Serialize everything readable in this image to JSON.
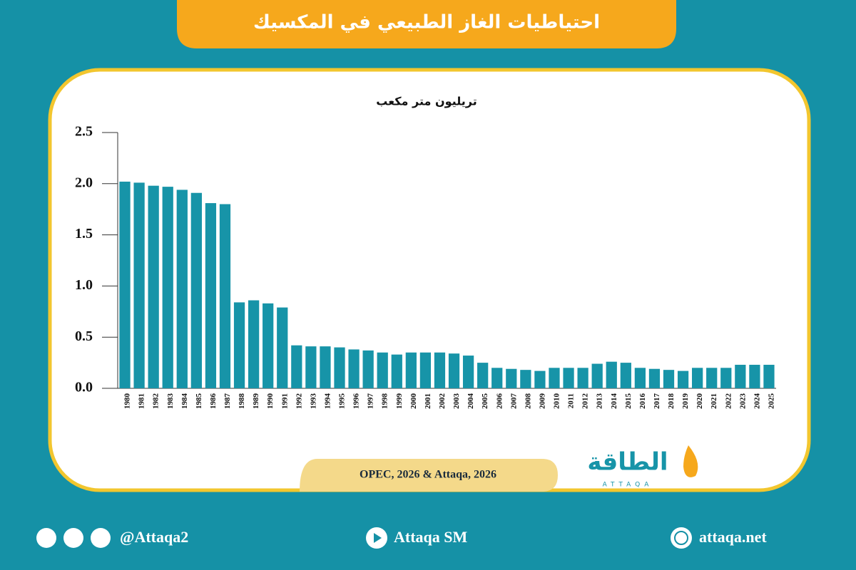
{
  "header": {
    "title": "احتياطيات الغاز الطبيعي في المكسيك"
  },
  "chart_data": {
    "type": "bar",
    "y_label": "تريليون متر مكعب",
    "categories": [
      "1980",
      "1981",
      "1982",
      "1983",
      "1984",
      "1985",
      "1986",
      "1987",
      "1988",
      "1989",
      "1990",
      "1991",
      "1992",
      "1993",
      "1994",
      "1995",
      "1996",
      "1997",
      "1998",
      "1999",
      "2000",
      "2001",
      "2002",
      "2003",
      "2004",
      "2005",
      "2006",
      "2007",
      "2008",
      "2009",
      "2010",
      "2011",
      "2012",
      "2013",
      "2014",
      "2015",
      "2016",
      "2017",
      "2018",
      "2019",
      "2020",
      "2021",
      "2022",
      "2023",
      "2024",
      "2025"
    ],
    "values": [
      2.02,
      2.01,
      1.98,
      1.97,
      1.94,
      1.91,
      1.81,
      1.8,
      0.84,
      0.86,
      0.83,
      0.79,
      0.42,
      0.41,
      0.41,
      0.4,
      0.38,
      0.37,
      0.35,
      0.33,
      0.35,
      0.35,
      0.35,
      0.34,
      0.32,
      0.25,
      0.2,
      0.19,
      0.18,
      0.17,
      0.2,
      0.2,
      0.2,
      0.24,
      0.26,
      0.25,
      0.2,
      0.19,
      0.18,
      0.17,
      0.2,
      0.2,
      0.2,
      0.23,
      0.23,
      0.23
    ],
    "color": "#1794a8",
    "ylim": [
      0,
      2.5
    ],
    "yticks": [
      {
        "value": 0,
        "label": "0.0"
      },
      0.5,
      {
        "value": 1,
        "label": "1.0"
      },
      1.5,
      {
        "value": 2,
        "label": "2.0"
      },
      2.5
    ],
    "grid": false
  },
  "source": "OPEC, 2026 & Attaqa, 2026",
  "logo": {
    "name": "الطاقة",
    "latin": "ATTAQA"
  },
  "footer": {
    "social": "@Attaqa2",
    "youtube": "Attaqa SM",
    "website": "attaqa.net"
  }
}
